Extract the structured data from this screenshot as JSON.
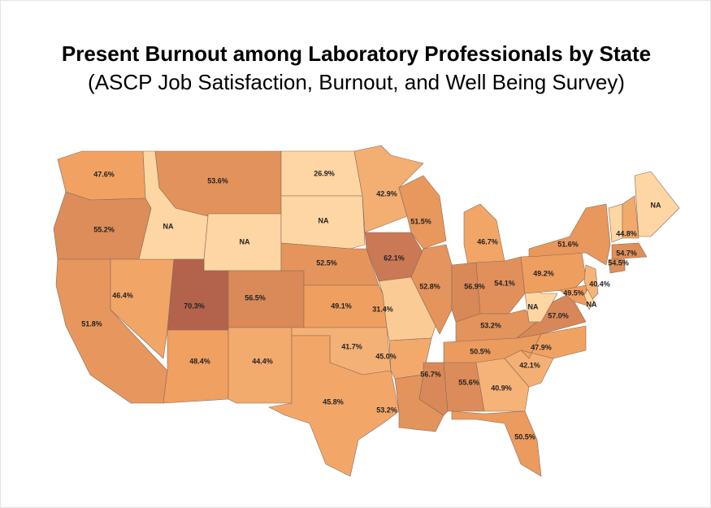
{
  "chart_data": {
    "type": "choropleth",
    "title": "Present Burnout among Laboratory Professionals by State",
    "subtitle": "(ASCP Job Satisfaction, Burnout, and Well Being Survey)",
    "values": [
      47.6,
      55.2,
      51.8,
      46.4,
      null,
      53.6,
      null,
      70.3,
      56.5,
      48.4,
      44.4,
      26.9,
      null,
      52.5,
      49.1,
      41.7,
      45.8,
      42.9,
      62.1,
      31.4,
      45.0,
      53.2,
      51.5,
      52.8,
      46.7,
      56.9,
      54.1,
      53.2,
      50.5,
      56.7,
      55.6,
      40.9,
      50.5,
      42.1,
      47.9,
      57.0,
      null,
      49.2,
      51.6,
      44.8,
      54.7,
      54.5,
      40.4,
      49.5,
      null,
      null
    ],
    "value_labels": [
      "47.6%",
      "55.2%",
      "51.8%",
      "46.4%",
      "NA",
      "53.6%",
      "NA",
      "70.3%",
      "56.5%",
      "48.4%",
      "44.4%",
      "26.9%",
      "NA",
      "52.5%",
      "49.1%",
      "41.7%",
      "45.8%",
      "42.9%",
      "62.1%",
      "31.4%",
      "45.0%",
      "53.2%",
      "51.5%",
      "52.8%",
      "46.7%",
      "56.9%",
      "54.1%",
      "53.2%",
      "50.5%",
      "56.7%",
      "55.6%",
      "40.9%",
      "50.5%",
      "42.1%",
      "47.9%",
      "57.0%",
      "NA",
      "49.2%",
      "51.6%",
      "44.8%",
      "54.7%",
      "54.5%",
      "40.4%",
      "49.5%",
      "NA",
      "NA"
    ],
    "colors": [
      "#fdd6a3",
      "#f0a060",
      "#b3624c"
    ],
    "na_color": "#fdd6a3"
  }
}
